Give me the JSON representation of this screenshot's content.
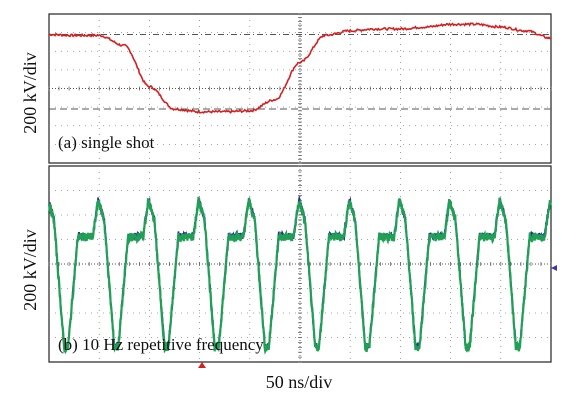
{
  "chart_data": [
    {
      "type": "line",
      "title": "",
      "caption": "(a) single shot",
      "ylabel": "200 kV/div",
      "xlabel": "",
      "xlim": [
        0,
        10
      ],
      "ylim": [
        -4,
        4
      ],
      "grid": true,
      "series": [
        {
          "color": "#d42020",
          "x": [
            0,
            0.5,
            1,
            1.5,
            2,
            2.5,
            3,
            3.5,
            4,
            4.5,
            5,
            5.5,
            6,
            6.5,
            7,
            7.5,
            8,
            8.5,
            9,
            9.5,
            10
          ],
          "values": [
            2.9,
            2.85,
            2.85,
            2.3,
            0.1,
            -1.1,
            -1.25,
            -1.25,
            -1.2,
            -0.6,
            1.4,
            2.85,
            3.1,
            3.2,
            3.2,
            3.3,
            3.45,
            3.45,
            3.3,
            3.1,
            2.7
          ]
        }
      ],
      "reference_lines": [
        {
          "y": 2.9,
          "style": "dash-dot"
        },
        {
          "y": -1.1,
          "style": "dashed"
        }
      ]
    },
    {
      "type": "line",
      "title": "",
      "caption": "(b) 10 Hz repetitive frequency",
      "ylabel": "200 kV/div",
      "xlabel": "50 ns/div",
      "xlim": [
        0,
        10
      ],
      "ylim": [
        -4,
        4
      ],
      "grid": true,
      "pulse_count": 10,
      "pulse_peak": 2.6,
      "pulse_trough": -3.4,
      "pulse_baseline": 1.2,
      "series": [
        {
          "color": "#2a2a9a"
        },
        {
          "color": "#1fa055"
        }
      ]
    }
  ]
}
